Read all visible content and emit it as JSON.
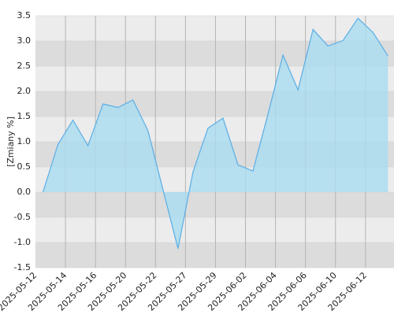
{
  "chart_data": {
    "type": "area",
    "y_label": "[Zmiany %]",
    "values": [
      0.0,
      0.95,
      1.43,
      0.92,
      1.75,
      1.68,
      1.83,
      1.22,
      0.05,
      -1.12,
      0.4,
      1.27,
      1.47,
      0.54,
      0.42,
      1.55,
      2.72,
      2.03,
      3.23,
      2.9,
      3.01,
      3.45,
      3.17,
      2.7
    ],
    "xticks": [
      "2025-05-12",
      "2025-05-14",
      "2025-05-16",
      "2025-05-20",
      "2025-05-22",
      "2025-05-27",
      "2025-05-29",
      "2025-06-02",
      "2025-06-04",
      "2025-06-06",
      "2025-06-10",
      "2025-06-12"
    ],
    "ylim": [
      -1.5,
      3.5
    ],
    "yticks": [
      -1.5,
      {
        "value": -1,
        "label": "-1.0"
      },
      -0.5,
      {
        "value": 0,
        "label": "0.0"
      },
      0.5,
      {
        "value": 1,
        "label": "1.0"
      },
      1.5,
      {
        "value": 2,
        "label": "2.0"
      },
      2.5,
      {
        "value": 3,
        "label": "3.0"
      },
      3.5
    ],
    "color": "#5aaee6",
    "fill": "#a9dcf0",
    "grid": true
  }
}
